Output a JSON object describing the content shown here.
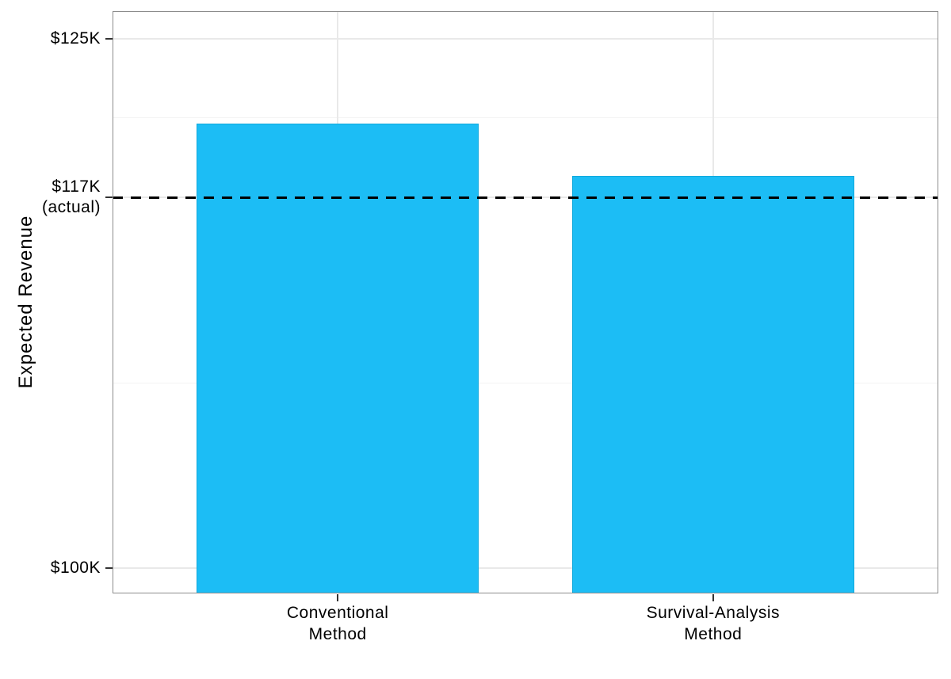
{
  "chart_data": {
    "type": "bar",
    "title": "",
    "ylabel": "Expected Revenue",
    "xlabel": "",
    "categories": [
      "Conventional Method",
      "Survival-Analysis Method"
    ],
    "category_label_lines": [
      [
        "Conventional",
        "Method"
      ],
      [
        "Survival-Analysis",
        "Method"
      ]
    ],
    "values": [
      121.0,
      118.5
    ],
    "units": "$K",
    "ylim": [
      98.8,
      126.3
    ],
    "y_ticks": [
      {
        "value": 100,
        "label_lines": [
          "$100K"
        ]
      },
      {
        "value": 117.5,
        "label_lines": [
          "$117K",
          "(actual)"
        ]
      },
      {
        "value": 125,
        "label_lines": [
          "$125K"
        ]
      }
    ],
    "y_minor_gridlines": [
      108.75,
      121.25
    ],
    "reference_line": {
      "value": 117.5,
      "label": "$117K (actual)",
      "style": "dashed"
    },
    "legend_position": "none",
    "grid": "horizontal major+minor, vertical major at category centers",
    "colors": {
      "bar_fill": "#1CBDF5",
      "bar_border": "#10A9DC",
      "reference_line": "#000000",
      "grid_major": "#E9E9E9",
      "grid_minor": "#F4F4F4",
      "panel_border": "#8C8C8C",
      "tick_mark": "#333333",
      "text": "#000000"
    }
  }
}
